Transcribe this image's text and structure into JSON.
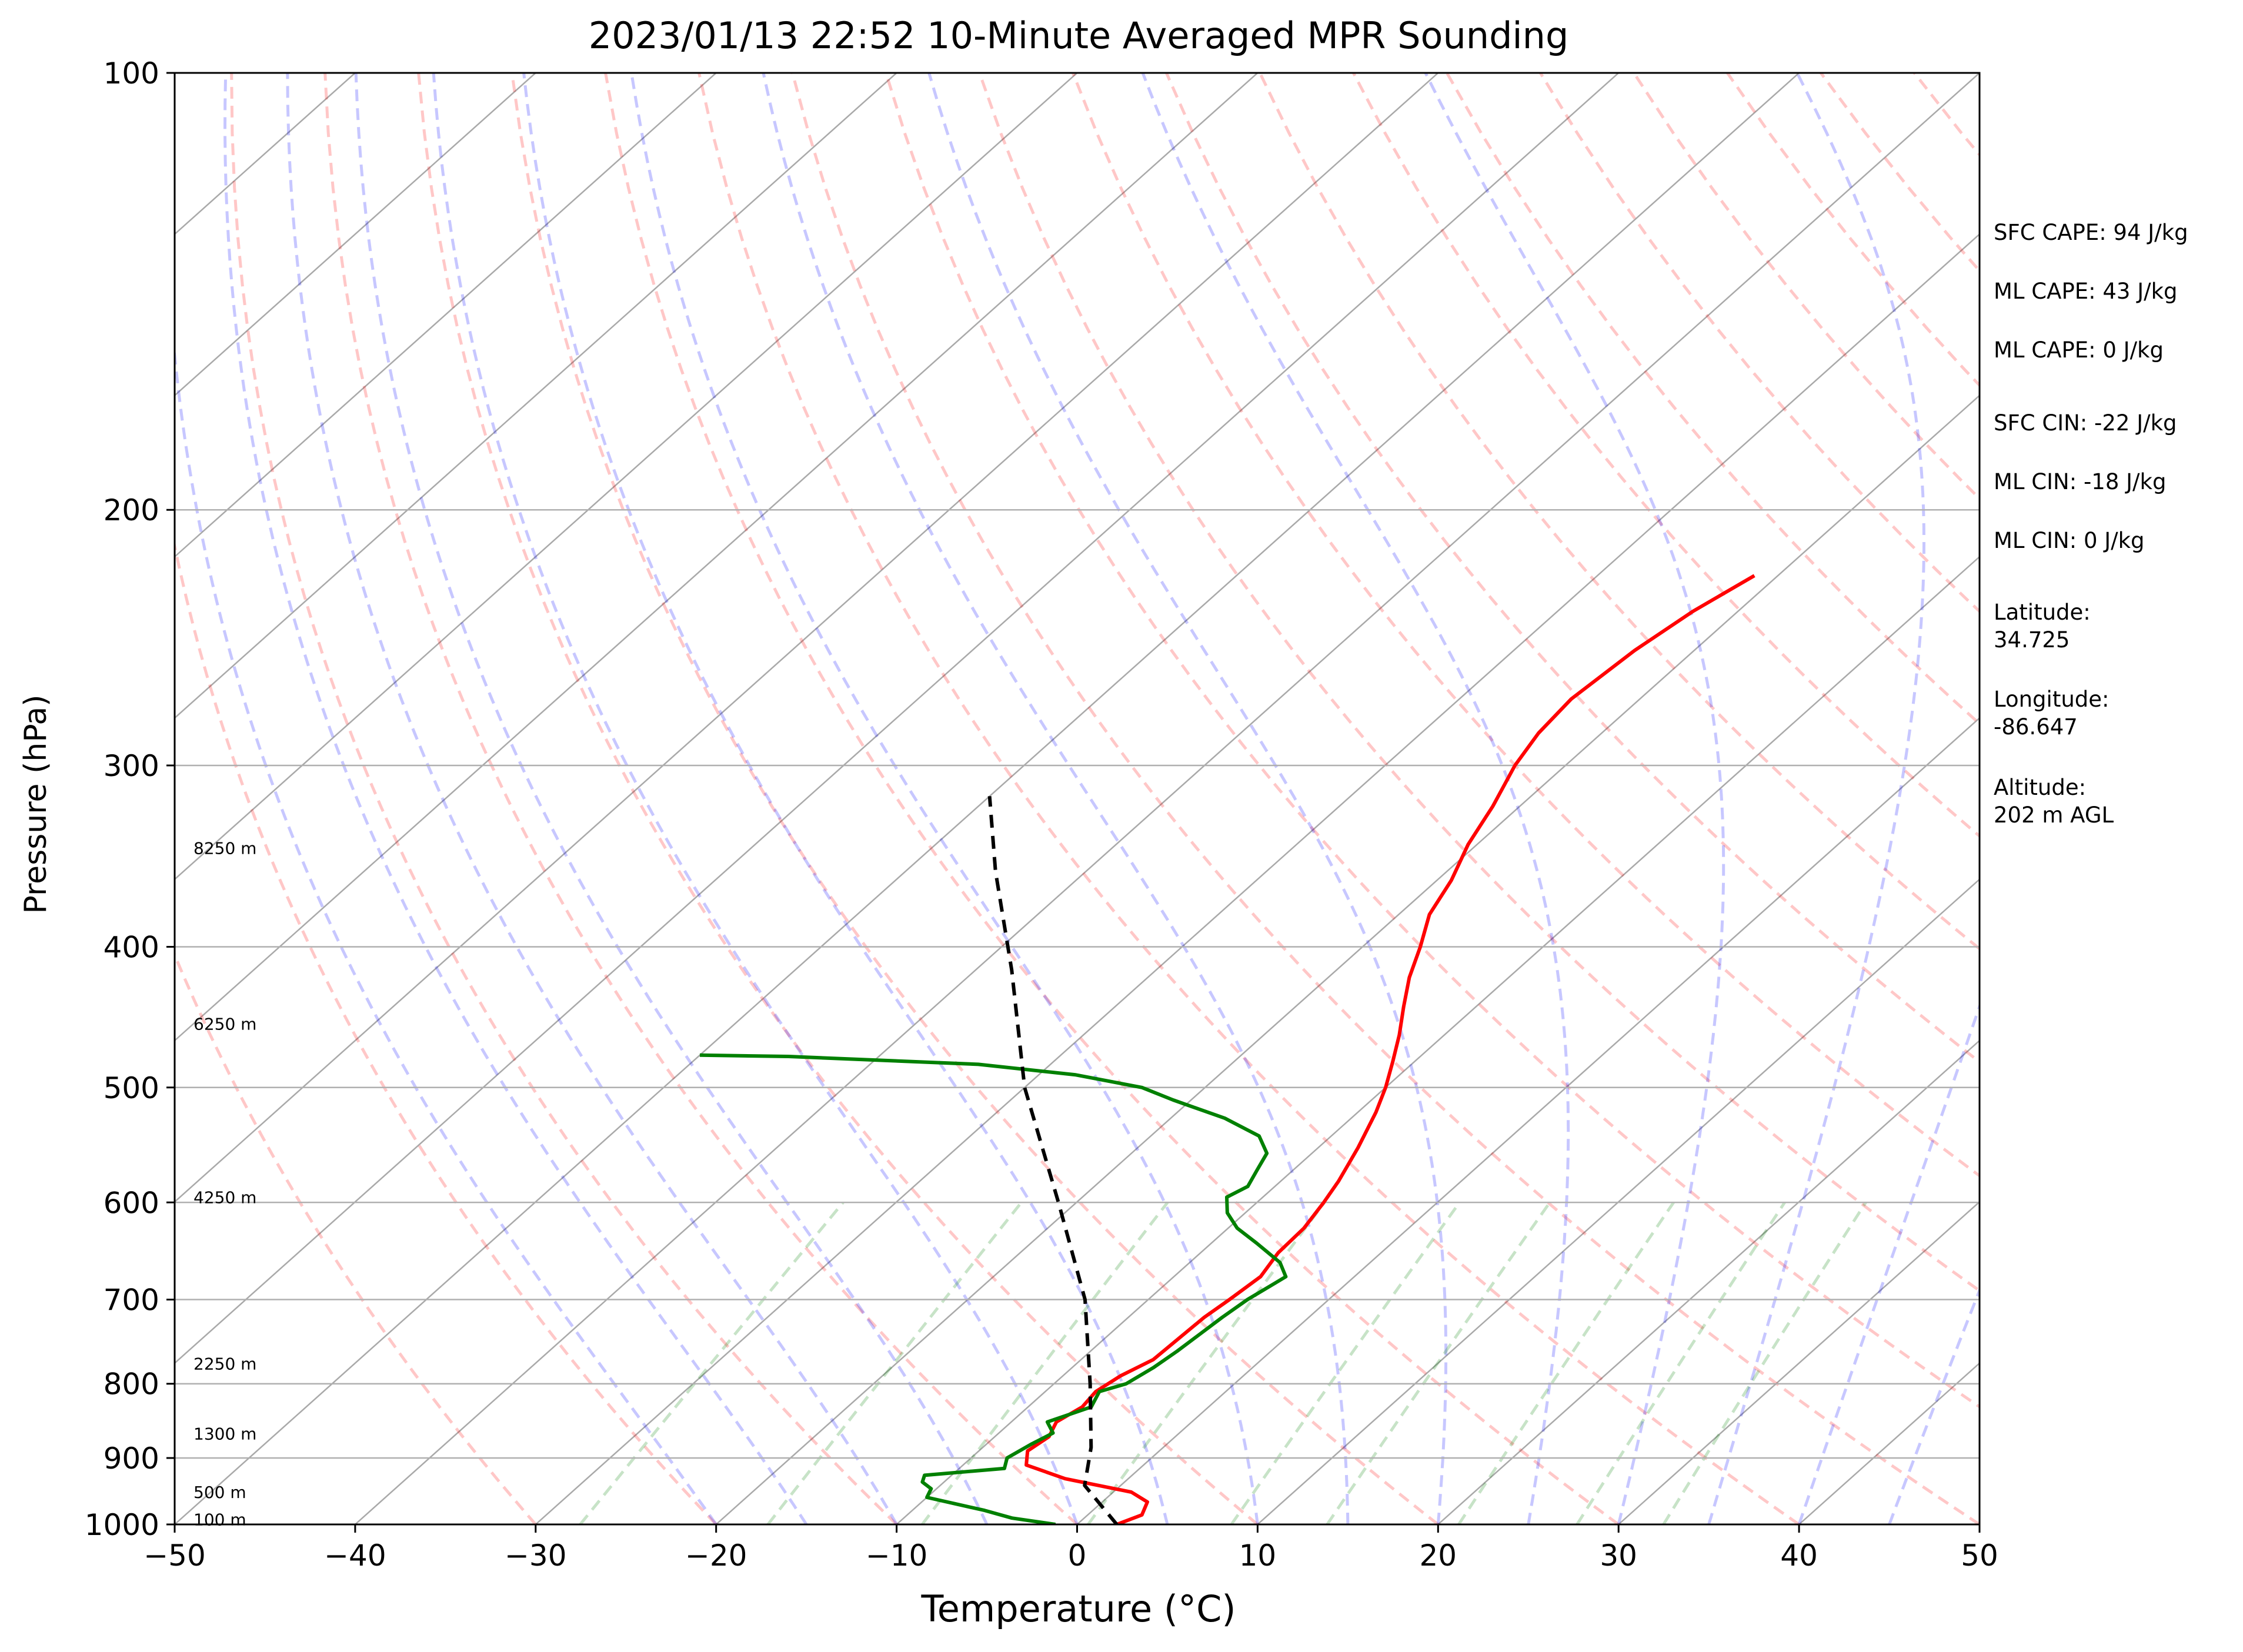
{
  "chart_data": {
    "type": "line",
    "subtype": "skew-t log-p",
    "title": "2023/01/13 22:52 10-Minute Averaged MPR Sounding",
    "xlabel": "Temperature (°C)",
    "ylabel": "Pressure (hPa)",
    "xlim": [
      -50,
      50
    ],
    "ylim": [
      1000,
      100
    ],
    "yscale": "log",
    "x_ticks": [
      "−50",
      "−40",
      "−30",
      "−20",
      "−10",
      "0",
      "10",
      "20",
      "30",
      "40",
      "50"
    ],
    "y_ticks": [
      "1000",
      "900",
      "800",
      "700",
      "600",
      "500",
      "400",
      "300",
      "200",
      "100"
    ],
    "grid": true,
    "series": [
      {
        "color": "#ff0000",
        "points": [
          [
            2.2,
            1000
          ],
          [
            3.0,
            985
          ],
          [
            2.5,
            965
          ],
          [
            1.0,
            950
          ],
          [
            -3.5,
            930
          ],
          [
            -6.5,
            910
          ],
          [
            -7.3,
            890
          ],
          [
            -7.0,
            870
          ],
          [
            -7.5,
            850
          ],
          [
            -7.0,
            830
          ],
          [
            -7.2,
            810
          ],
          [
            -6.8,
            790
          ],
          [
            -6.0,
            770
          ],
          [
            -5.8,
            720
          ],
          [
            -5.5,
            700
          ],
          [
            -5.2,
            675
          ],
          [
            -5.7,
            650
          ],
          [
            -5.8,
            625
          ],
          [
            -6.3,
            600
          ],
          [
            -6.8,
            580
          ],
          [
            -7.8,
            550
          ],
          [
            -9.0,
            520
          ],
          [
            -10.0,
            500
          ],
          [
            -11.2,
            480
          ],
          [
            -12.5,
            460
          ],
          [
            -14.0,
            440
          ],
          [
            -15.5,
            420
          ],
          [
            -16.8,
            400
          ],
          [
            -18.3,
            380
          ],
          [
            -19.2,
            360
          ],
          [
            -20.5,
            340
          ],
          [
            -21.5,
            320
          ],
          [
            -22.8,
            300
          ],
          [
            -23.5,
            285
          ],
          [
            -23.8,
            270
          ],
          [
            -23.3,
            250
          ],
          [
            -22.5,
            235
          ],
          [
            -21.3,
            222
          ]
        ]
      },
      {
        "color": "#008000",
        "points": [
          [
            -1.2,
            1000
          ],
          [
            -4.0,
            990
          ],
          [
            -6.0,
            978
          ],
          [
            -8.0,
            968
          ],
          [
            -10.0,
            958
          ],
          [
            -10.3,
            945
          ],
          [
            -11.2,
            935
          ],
          [
            -11.5,
            925
          ],
          [
            -7.5,
            915
          ],
          [
            -8.0,
            900
          ],
          [
            -7.5,
            880
          ],
          [
            -7.0,
            865
          ],
          [
            -8.0,
            850
          ],
          [
            -6.5,
            830
          ],
          [
            -7.0,
            810
          ],
          [
            -6.0,
            800
          ],
          [
            -5.5,
            780
          ],
          [
            -5.2,
            760
          ],
          [
            -5.0,
            740
          ],
          [
            -4.8,
            720
          ],
          [
            -4.5,
            700
          ],
          [
            -3.8,
            675
          ],
          [
            -5.0,
            660
          ],
          [
            -7.5,
            640
          ],
          [
            -9.5,
            625
          ],
          [
            -11.0,
            610
          ],
          [
            -12.0,
            595
          ],
          [
            -11.5,
            585
          ],
          [
            -12.0,
            570
          ],
          [
            -12.5,
            555
          ],
          [
            -14.0,
            540
          ],
          [
            -17.0,
            525
          ],
          [
            -21.0,
            510
          ],
          [
            -23.5,
            500
          ],
          [
            -28.0,
            490
          ],
          [
            -34.0,
            482
          ],
          [
            -45.0,
            476
          ],
          [
            -50.0,
            475
          ]
        ]
      },
      {
        "color": "#000000",
        "dashed": true,
        "points": [
          [
            2.2,
            1000
          ],
          [
            -2.0,
            940
          ],
          [
            -4.0,
            885
          ],
          [
            -8.0,
            800
          ],
          [
            -13.5,
            700
          ],
          [
            -21.0,
            600
          ],
          [
            -30.0,
            500
          ],
          [
            -38.0,
            415
          ],
          [
            -45.0,
            355
          ],
          [
            -50.0,
            315
          ]
        ]
      }
    ],
    "height_labels": [
      {
        "text": "100 m",
        "p": 992
      },
      {
        "text": "500 m",
        "p": 950
      },
      {
        "text": "1300 m",
        "p": 866
      },
      {
        "text": "2250 m",
        "p": 775
      },
      {
        "text": "4250 m",
        "p": 595
      },
      {
        "text": "6250 m",
        "p": 452
      },
      {
        "text": "8250 m",
        "p": 342
      }
    ],
    "annotations": [
      "SFC CAPE: 94 J/kg",
      "ML CAPE: 43 J/kg",
      "ML CAPE: 0 J/kg",
      "SFC CIN: -22 J/kg",
      "ML CIN: -18 J/kg",
      "ML CIN: 0 J/kg",
      "Latitude:\n34.725",
      "Longitude:\n-86.647",
      "Altitude:\n202 m AGL"
    ],
    "background_lines": {
      "isotherm_color": "#a9a9a9",
      "dry_adiabat_color": "#ff0000",
      "moist_adiabat_color": "#0000ff",
      "mixing_ratio_color": "#008000"
    }
  }
}
